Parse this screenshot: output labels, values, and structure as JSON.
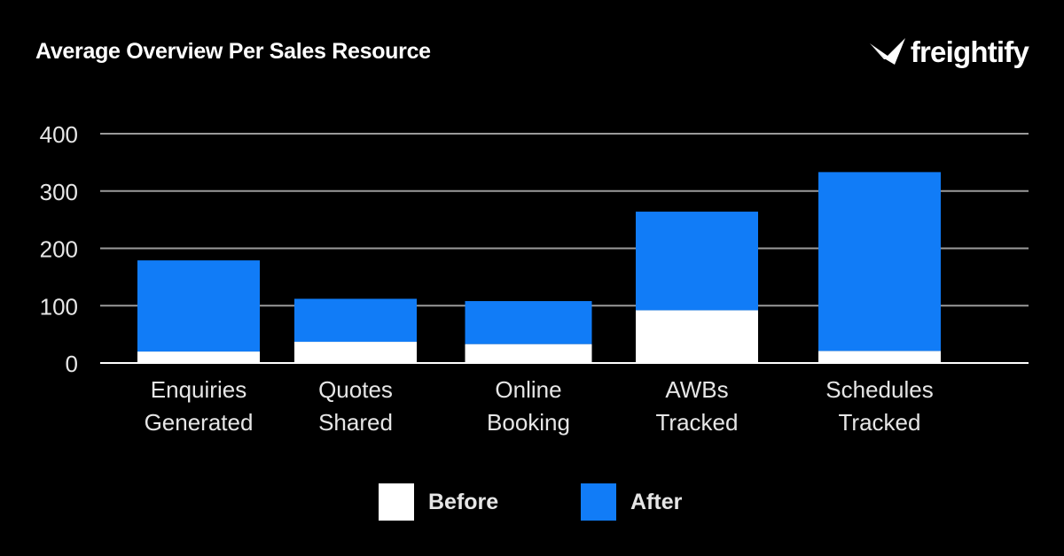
{
  "header": {
    "title": "Average Overview Per Sales Resource",
    "brand_name": "freightify"
  },
  "colors": {
    "background": "#000000",
    "before": "#ffffff",
    "after": "#117cf7",
    "grid": "#9a9a9a",
    "text": "#e6e6e6"
  },
  "chart_data": {
    "type": "bar",
    "stacked": true,
    "title": "Average Overview Per Sales Resource",
    "xlabel": "",
    "ylabel": "",
    "ylim": [
      0,
      400
    ],
    "yticks": [
      0,
      100,
      200,
      300,
      400
    ],
    "grid": true,
    "legend_position": "bottom",
    "categories": [
      [
        "Enquiries",
        "Generated"
      ],
      [
        "Quotes",
        "Shared"
      ],
      [
        "Online",
        "Booking"
      ],
      [
        "AWBs",
        "Tracked"
      ],
      [
        "Schedules",
        "Tracked"
      ]
    ],
    "series": [
      {
        "name": "Before",
        "color": "#ffffff",
        "values": [
          20,
          37,
          33,
          92,
          21
        ]
      },
      {
        "name": "After",
        "color": "#117cf7",
        "values": [
          159,
          75,
          75,
          172,
          312
        ]
      }
    ]
  }
}
